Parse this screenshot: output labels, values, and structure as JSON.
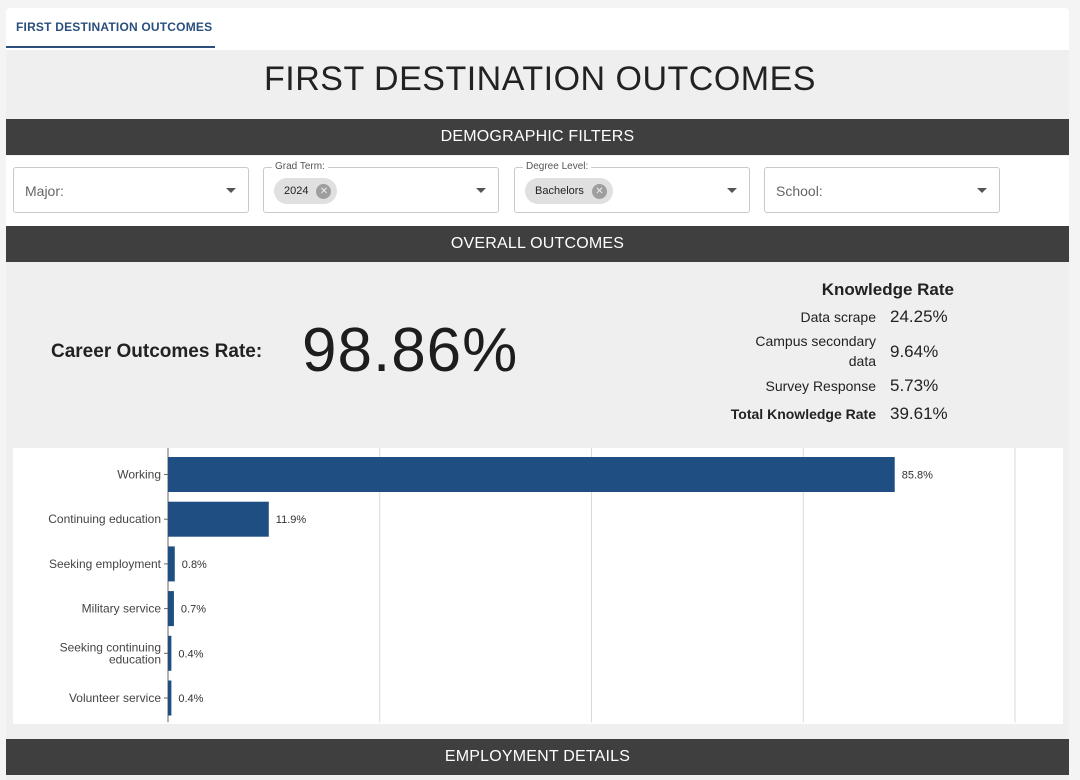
{
  "tab": {
    "label": "FIRST DESTINATION OUTCOMES"
  },
  "page_title": "FIRST DESTINATION OUTCOMES",
  "sections": {
    "demographic_filters": "DEMOGRAPHIC FILTERS",
    "overall_outcomes": "OVERALL OUTCOMES",
    "employment_details": "EMPLOYMENT DETAILS"
  },
  "filters": {
    "major": {
      "placeholder": "Major:"
    },
    "grad_term": {
      "label": "Grad Term:",
      "chip": "2024",
      "chip_remove": "✕"
    },
    "degree_level": {
      "label": "Degree Level:",
      "chip": "Bachelors",
      "chip_remove": "✕"
    },
    "school": {
      "placeholder": "School:"
    }
  },
  "career_outcomes": {
    "label": "Career Outcomes Rate:",
    "value": "98.86%"
  },
  "knowledge_rate": {
    "title": "Knowledge Rate",
    "rows": [
      {
        "name": "Data scrape",
        "value": "24.25%"
      },
      {
        "name": "Campus secondary data",
        "value": "9.64%"
      },
      {
        "name": "Survey Response",
        "value": "5.73%"
      },
      {
        "name": "Total Knowledge Rate",
        "value": "39.61%"
      }
    ]
  },
  "chart_data": {
    "type": "bar",
    "orientation": "horizontal",
    "categories": [
      "Working",
      "Continuing education",
      "Seeking employment",
      "Military service",
      "Seeking continuing education",
      "Volunteer service"
    ],
    "values": [
      85.8,
      11.9,
      0.8,
      0.7,
      0.4,
      0.4
    ],
    "labels": [
      "85.8%",
      "11.9%",
      "0.8%",
      "0.7%",
      "0.4%",
      "0.4%"
    ],
    "xlim": [
      0,
      100
    ],
    "grid": true,
    "bar_color": "#1f4e82",
    "title": "",
    "xlabel": "",
    "ylabel": ""
  },
  "colors": {
    "header_bg": "#3f3f3f",
    "accent": "#2a4f7d",
    "bar": "#1f4e82"
  },
  "icons": {
    "dropdown": "chevron-down-icon",
    "chip_remove": "close-circle-icon"
  }
}
